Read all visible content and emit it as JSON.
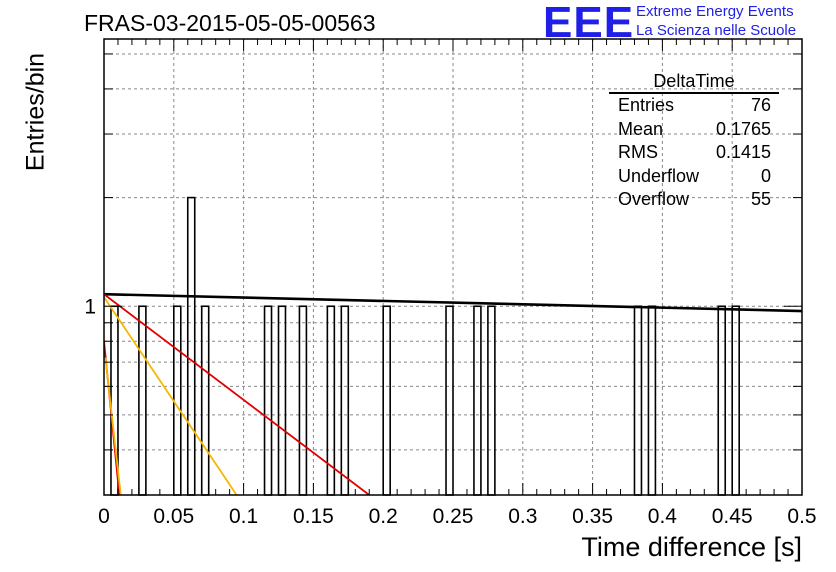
{
  "header": {
    "run_title": "FRAS-03-2015-05-05-00563",
    "logo_mark": "EEE",
    "logo_line1": "Extreme Energy Events",
    "logo_line2": "La Scienza nelle Scuole"
  },
  "stats_box": {
    "title": "DeltaTime",
    "rows": [
      {
        "label": "Entries",
        "value": "76"
      },
      {
        "label": "Mean",
        "value": "0.1765"
      },
      {
        "label": "RMS",
        "value": "0.1415"
      },
      {
        "label": "Underflow",
        "value": "0"
      },
      {
        "label": "Overflow",
        "value": "55"
      }
    ]
  },
  "chart_data": {
    "type": "bar",
    "xlabel": "Time difference [s]",
    "ylabel": "Entries/bin",
    "xlim": [
      0,
      0.5
    ],
    "ylim_log": [
      0.3,
      5.5
    ],
    "y_scale": "log",
    "grid": true,
    "bin_width": 0.005,
    "x_ticks": [
      "0",
      "0.05",
      "0.1",
      "0.15",
      "0.2",
      "0.25",
      "0.3",
      "0.35",
      "0.4",
      "0.45",
      "0.5"
    ],
    "y_tick_labels": [
      {
        "value": 1,
        "label": "1"
      }
    ],
    "bins": [
      {
        "x": 0.005,
        "count": 1
      },
      {
        "x": 0.025,
        "count": 1
      },
      {
        "x": 0.05,
        "count": 1
      },
      {
        "x": 0.06,
        "count": 2
      },
      {
        "x": 0.07,
        "count": 1
      },
      {
        "x": 0.115,
        "count": 1
      },
      {
        "x": 0.125,
        "count": 1
      },
      {
        "x": 0.14,
        "count": 1
      },
      {
        "x": 0.16,
        "count": 1
      },
      {
        "x": 0.17,
        "count": 1
      },
      {
        "x": 0.2,
        "count": 1
      },
      {
        "x": 0.245,
        "count": 1
      },
      {
        "x": 0.265,
        "count": 1
      },
      {
        "x": 0.275,
        "count": 1
      },
      {
        "x": 0.38,
        "count": 1
      },
      {
        "x": 0.39,
        "count": 1
      },
      {
        "x": 0.44,
        "count": 1
      },
      {
        "x": 0.45,
        "count": 1
      }
    ],
    "fit_lines": [
      {
        "color": "#000000",
        "points": [
          [
            0,
            1.08
          ],
          [
            0.5,
            0.97
          ]
        ]
      },
      {
        "color": "#e00000",
        "points": [
          [
            0,
            1.08
          ],
          [
            0.19,
            0.3
          ]
        ]
      },
      {
        "color": "#f5b800",
        "points": [
          [
            0,
            1.06
          ],
          [
            0.095,
            0.3
          ]
        ]
      },
      {
        "color": "#e00000",
        "points": [
          [
            0,
            0.8
          ],
          [
            0.011,
            0.3
          ]
        ]
      },
      {
        "color": "#f5b800",
        "points": [
          [
            0.001,
            0.72
          ],
          [
            0.012,
            0.3
          ]
        ]
      }
    ]
  }
}
